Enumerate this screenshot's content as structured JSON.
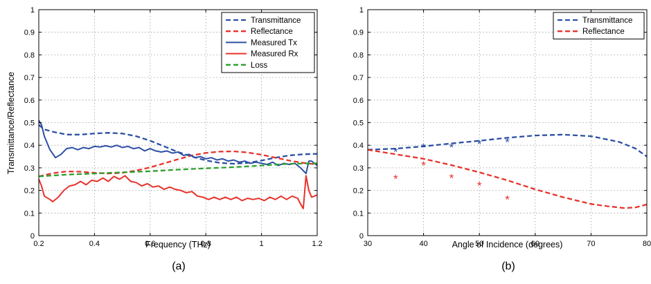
{
  "chart_data": [
    {
      "type": "line",
      "panel_label": "(a)",
      "xlabel": "Frequency (THz)",
      "ylabel": "Transmittance/Reflectance",
      "xlim": [
        0.2,
        1.2
      ],
      "ylim": [
        0,
        1
      ],
      "xticks": [
        "0.2",
        "0.4",
        "0.6",
        "0.8",
        "1",
        "1.2"
      ],
      "yticks": [
        "0",
        "0.1",
        "0.2",
        "0.3",
        "0.4",
        "0.5",
        "0.6",
        "0.7",
        "0.8",
        "0.9",
        "1"
      ],
      "grid": true,
      "legend_position": "top-right",
      "series": [
        {
          "name": "Transmittance",
          "style": "dashed",
          "color": "#2c4fa3",
          "points": [
            [
              0.2,
              0.49
            ],
            [
              0.22,
              0.47
            ],
            [
              0.25,
              0.46
            ],
            [
              0.3,
              0.447
            ],
            [
              0.35,
              0.447
            ],
            [
              0.4,
              0.452
            ],
            [
              0.45,
              0.455
            ],
            [
              0.5,
              0.452
            ],
            [
              0.55,
              0.44
            ],
            [
              0.6,
              0.42
            ],
            [
              0.65,
              0.395
            ],
            [
              0.7,
              0.37
            ],
            [
              0.75,
              0.35
            ],
            [
              0.8,
              0.333
            ],
            [
              0.85,
              0.322
            ],
            [
              0.9,
              0.318
            ],
            [
              0.95,
              0.322
            ],
            [
              1.0,
              0.332
            ],
            [
              1.05,
              0.345
            ],
            [
              1.1,
              0.355
            ],
            [
              1.15,
              0.36
            ],
            [
              1.2,
              0.362
            ]
          ]
        },
        {
          "name": "Reflectance",
          "style": "dashed",
          "color": "#e8312a",
          "points": [
            [
              0.2,
              0.262
            ],
            [
              0.25,
              0.276
            ],
            [
              0.3,
              0.284
            ],
            [
              0.35,
              0.283
            ],
            [
              0.4,
              0.278
            ],
            [
              0.45,
              0.275
            ],
            [
              0.5,
              0.278
            ],
            [
              0.55,
              0.288
            ],
            [
              0.6,
              0.302
            ],
            [
              0.65,
              0.32
            ],
            [
              0.7,
              0.338
            ],
            [
              0.75,
              0.355
            ],
            [
              0.8,
              0.366
            ],
            [
              0.85,
              0.372
            ],
            [
              0.9,
              0.373
            ],
            [
              0.95,
              0.368
            ],
            [
              1.0,
              0.358
            ],
            [
              1.05,
              0.345
            ],
            [
              1.1,
              0.332
            ],
            [
              1.15,
              0.322
            ],
            [
              1.2,
              0.315
            ]
          ]
        },
        {
          "name": "Measured Tx",
          "style": "solid",
          "color": "#2c4fa3",
          "points": [
            [
              0.2,
              0.51
            ],
            [
              0.21,
              0.49
            ],
            [
              0.22,
              0.44
            ],
            [
              0.24,
              0.38
            ],
            [
              0.26,
              0.345
            ],
            [
              0.28,
              0.36
            ],
            [
              0.3,
              0.385
            ],
            [
              0.32,
              0.39
            ],
            [
              0.34,
              0.38
            ],
            [
              0.36,
              0.39
            ],
            [
              0.38,
              0.385
            ],
            [
              0.4,
              0.395
            ],
            [
              0.42,
              0.392
            ],
            [
              0.44,
              0.398
            ],
            [
              0.46,
              0.392
            ],
            [
              0.48,
              0.4
            ],
            [
              0.5,
              0.39
            ],
            [
              0.52,
              0.395
            ],
            [
              0.54,
              0.385
            ],
            [
              0.56,
              0.39
            ],
            [
              0.58,
              0.375
            ],
            [
              0.6,
              0.385
            ],
            [
              0.62,
              0.375
            ],
            [
              0.64,
              0.37
            ],
            [
              0.66,
              0.375
            ],
            [
              0.68,
              0.365
            ],
            [
              0.7,
              0.37
            ],
            [
              0.72,
              0.355
            ],
            [
              0.74,
              0.36
            ],
            [
              0.76,
              0.345
            ],
            [
              0.78,
              0.35
            ],
            [
              0.8,
              0.34
            ],
            [
              0.82,
              0.345
            ],
            [
              0.84,
              0.335
            ],
            [
              0.86,
              0.34
            ],
            [
              0.88,
              0.33
            ],
            [
              0.9,
              0.335
            ],
            [
              0.92,
              0.325
            ],
            [
              0.94,
              0.33
            ],
            [
              0.96,
              0.32
            ],
            [
              0.98,
              0.325
            ],
            [
              1.0,
              0.32
            ],
            [
              1.02,
              0.315
            ],
            [
              1.04,
              0.325
            ],
            [
              1.06,
              0.31
            ],
            [
              1.08,
              0.32
            ],
            [
              1.1,
              0.315
            ],
            [
              1.12,
              0.32
            ],
            [
              1.14,
              0.3
            ],
            [
              1.16,
              0.275
            ],
            [
              1.17,
              0.33
            ],
            [
              1.18,
              0.33
            ],
            [
              1.2,
              0.31
            ]
          ]
        },
        {
          "name": "Measured Rx",
          "style": "solid",
          "color": "#e8312a",
          "points": [
            [
              0.2,
              0.25
            ],
            [
              0.21,
              0.22
            ],
            [
              0.22,
              0.175
            ],
            [
              0.24,
              0.16
            ],
            [
              0.25,
              0.15
            ],
            [
              0.27,
              0.17
            ],
            [
              0.29,
              0.2
            ],
            [
              0.31,
              0.22
            ],
            [
              0.33,
              0.225
            ],
            [
              0.35,
              0.24
            ],
            [
              0.37,
              0.225
            ],
            [
              0.39,
              0.245
            ],
            [
              0.41,
              0.24
            ],
            [
              0.43,
              0.255
            ],
            [
              0.45,
              0.24
            ],
            [
              0.47,
              0.262
            ],
            [
              0.49,
              0.25
            ],
            [
              0.51,
              0.265
            ],
            [
              0.53,
              0.24
            ],
            [
              0.55,
              0.235
            ],
            [
              0.57,
              0.22
            ],
            [
              0.59,
              0.23
            ],
            [
              0.61,
              0.215
            ],
            [
              0.63,
              0.22
            ],
            [
              0.65,
              0.205
            ],
            [
              0.67,
              0.215
            ],
            [
              0.69,
              0.205
            ],
            [
              0.71,
              0.2
            ],
            [
              0.73,
              0.19
            ],
            [
              0.75,
              0.195
            ],
            [
              0.77,
              0.175
            ],
            [
              0.79,
              0.17
            ],
            [
              0.81,
              0.16
            ],
            [
              0.83,
              0.17
            ],
            [
              0.85,
              0.16
            ],
            [
              0.87,
              0.17
            ],
            [
              0.89,
              0.16
            ],
            [
              0.91,
              0.17
            ],
            [
              0.93,
              0.155
            ],
            [
              0.95,
              0.165
            ],
            [
              0.97,
              0.16
            ],
            [
              0.99,
              0.165
            ],
            [
              1.01,
              0.155
            ],
            [
              1.03,
              0.17
            ],
            [
              1.05,
              0.16
            ],
            [
              1.07,
              0.175
            ],
            [
              1.09,
              0.16
            ],
            [
              1.11,
              0.175
            ],
            [
              1.13,
              0.165
            ],
            [
              1.14,
              0.14
            ],
            [
              1.15,
              0.12
            ],
            [
              1.16,
              0.265
            ],
            [
              1.17,
              0.2
            ],
            [
              1.18,
              0.17
            ],
            [
              1.2,
              0.18
            ]
          ]
        },
        {
          "name": "Loss",
          "style": "dashed",
          "color": "#2ca02c",
          "points": [
            [
              0.2,
              0.262
            ],
            [
              0.3,
              0.27
            ],
            [
              0.4,
              0.275
            ],
            [
              0.5,
              0.28
            ],
            [
              0.6,
              0.285
            ],
            [
              0.7,
              0.292
            ],
            [
              0.8,
              0.298
            ],
            [
              0.9,
              0.303
            ],
            [
              1.0,
              0.31
            ],
            [
              1.1,
              0.318
            ],
            [
              1.2,
              0.32
            ]
          ]
        }
      ]
    },
    {
      "type": "line",
      "panel_label": "(b)",
      "xlabel": "Angle of Incidence (degrees)",
      "ylabel": "",
      "xlim": [
        30,
        80
      ],
      "ylim": [
        0,
        1
      ],
      "xticks": [
        "30",
        "40",
        "50",
        "60",
        "70",
        "80"
      ],
      "yticks": [
        "0",
        "0.1",
        "0.2",
        "0.3",
        "0.4",
        "0.5",
        "0.6",
        "0.7",
        "0.8",
        "0.9",
        "1"
      ],
      "grid": true,
      "legend_position": "top-right",
      "series": [
        {
          "name": "Transmittance",
          "style": "dashed",
          "color": "#2c4fa3",
          "points": [
            [
              30,
              0.38
            ],
            [
              35,
              0.385
            ],
            [
              40,
              0.395
            ],
            [
              45,
              0.408
            ],
            [
              50,
              0.42
            ],
            [
              55,
              0.433
            ],
            [
              60,
              0.443
            ],
            [
              65,
              0.447
            ],
            [
              70,
              0.44
            ],
            [
              75,
              0.415
            ],
            [
              78,
              0.385
            ],
            [
              80,
              0.35
            ]
          ]
        },
        {
          "name": "Reflectance",
          "style": "dashed",
          "color": "#e8312a",
          "points": [
            [
              30,
              0.38
            ],
            [
              35,
              0.36
            ],
            [
              40,
              0.34
            ],
            [
              45,
              0.312
            ],
            [
              50,
              0.28
            ],
            [
              55,
              0.245
            ],
            [
              60,
              0.205
            ],
            [
              65,
              0.17
            ],
            [
              70,
              0.14
            ],
            [
              73,
              0.13
            ],
            [
              76,
              0.122
            ],
            [
              78,
              0.125
            ],
            [
              80,
              0.138
            ]
          ]
        },
        {
          "name": "",
          "style": "marker",
          "color": "#2c4fa3",
          "points": [
            [
              35,
              0.375
            ],
            [
              40,
              0.395
            ],
            [
              45,
              0.395
            ],
            [
              50,
              0.41
            ],
            [
              55,
              0.418
            ]
          ]
        },
        {
          "name": "",
          "style": "marker",
          "color": "#e8312a",
          "points": [
            [
              35,
              0.255
            ],
            [
              40,
              0.315
            ],
            [
              45,
              0.258
            ],
            [
              50,
              0.225
            ],
            [
              55,
              0.163
            ]
          ]
        }
      ]
    }
  ]
}
